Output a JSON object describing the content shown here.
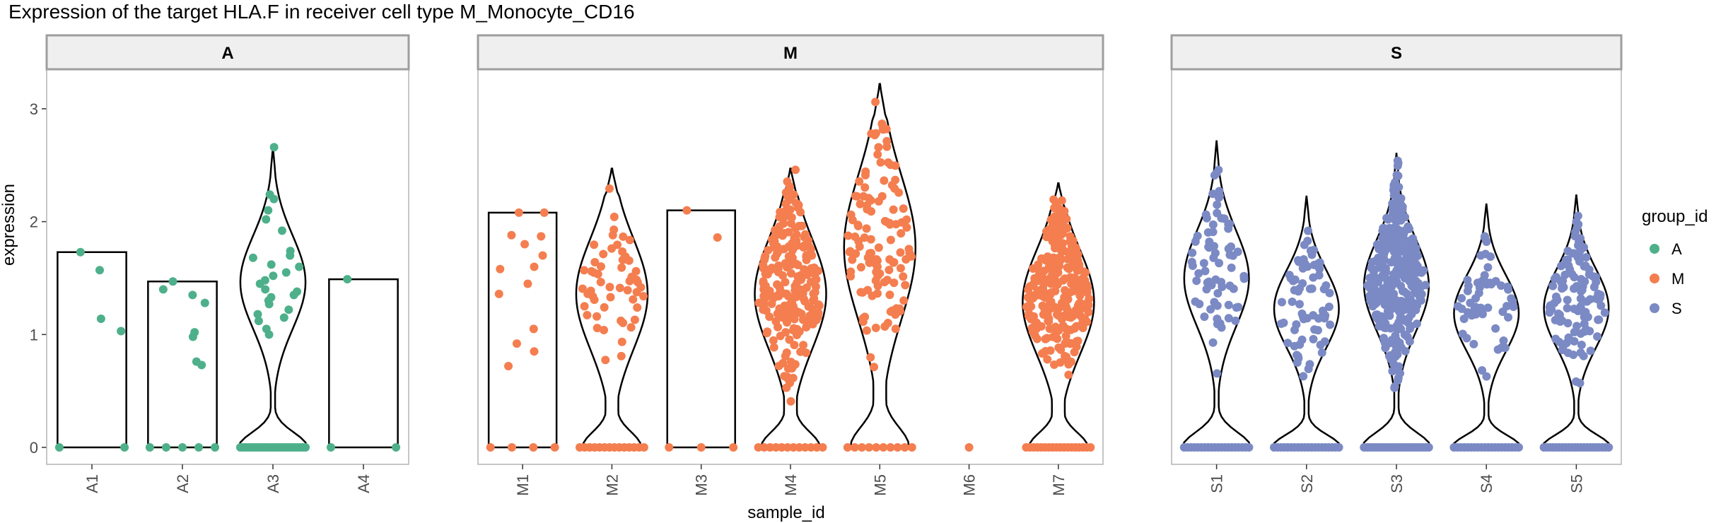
{
  "chart_data": {
    "type": "violin",
    "title": "Expression of the target HLA.F in receiver cell type M_Monocyte_CD16",
    "xlabel": "sample_id",
    "ylabel": "expression",
    "ylim": [
      -0.15,
      3.35
    ],
    "yticks": [
      0,
      1,
      2,
      3
    ],
    "grid": false,
    "legend": {
      "title": "group_id",
      "position": "right",
      "entries": [
        {
          "label": "A",
          "color": "#4EB08A"
        },
        {
          "label": "M",
          "color": "#F47E4F"
        },
        {
          "label": "S",
          "color": "#7B8AC4"
        }
      ]
    },
    "facets": [
      {
        "label": "A",
        "color": "#4EB08A",
        "samples": [
          {
            "id": "A1",
            "max": 1.73,
            "zeros": 2,
            "dist": "flat",
            "values": [
              1.14,
              1.73,
              1.57,
              1.03
            ]
          },
          {
            "id": "A2",
            "max": 1.47,
            "zeros": 5,
            "dist": "flat",
            "values": [
              0.98,
              1.35,
              1.4,
              1.28,
              1.02,
              0.73,
              0.76,
              1.47
            ]
          },
          {
            "id": "A3",
            "max": 2.66,
            "zeros": 25,
            "dist": "spiky",
            "values": [
              2.66,
              2.24,
              2.2,
              2.1,
              2.02,
              1.92,
              1.74,
              1.7,
              1.68,
              1.62,
              1.55,
              1.48,
              1.45,
              1.4,
              1.38,
              1.35,
              1.3,
              1.27,
              1.22,
              1.18,
              1.12,
              1.05,
              1.0,
              1.52,
              1.6,
              1.33,
              1.15
            ]
          },
          {
            "id": "A4",
            "max": 1.49,
            "zeros": 2,
            "dist": "flat",
            "values": [
              1.49
            ]
          }
        ]
      },
      {
        "label": "M",
        "color": "#F47E4F",
        "samples": [
          {
            "id": "M1",
            "max": 2.08,
            "zeros": 4,
            "dist": "flat",
            "values": [
              2.08,
              2.08,
              1.87,
              1.88,
              1.8,
              1.7,
              1.6,
              1.58,
              1.45,
              1.36,
              1.05,
              0.92,
              0.85,
              0.72
            ]
          },
          {
            "id": "M2",
            "max": 2.47,
            "zeros": 14,
            "dist": "wide",
            "n": 55
          },
          {
            "id": "M3",
            "max": 2.1,
            "zeros": 3,
            "dist": "flat",
            "values": [
              2.1,
              1.86
            ]
          },
          {
            "id": "M4",
            "max": 2.47,
            "zeros": 12,
            "dist": "wide",
            "n": 230
          },
          {
            "id": "M5",
            "max": 3.22,
            "zeros": 10,
            "dist": "wide",
            "n": 120
          },
          {
            "id": "M6",
            "max": 0,
            "zeros": 1,
            "dist": "none",
            "values": []
          },
          {
            "id": "M7",
            "max": 2.34,
            "zeros": 18,
            "dist": "wide",
            "n": 260
          }
        ]
      },
      {
        "label": "S",
        "color": "#7B8AC4",
        "samples": [
          {
            "id": "S1",
            "max": 2.72,
            "zeros": 20,
            "dist": "spiky",
            "n": 70
          },
          {
            "id": "S2",
            "max": 2.23,
            "zeros": 20,
            "dist": "spiky",
            "n": 70
          },
          {
            "id": "S3",
            "max": 2.61,
            "zeros": 24,
            "dist": "spiky",
            "n": 330
          },
          {
            "id": "S4",
            "max": 2.16,
            "zeros": 20,
            "dist": "spiky",
            "n": 55
          },
          {
            "id": "S5",
            "max": 2.24,
            "zeros": 22,
            "dist": "spiky",
            "n": 110
          }
        ]
      }
    ]
  }
}
